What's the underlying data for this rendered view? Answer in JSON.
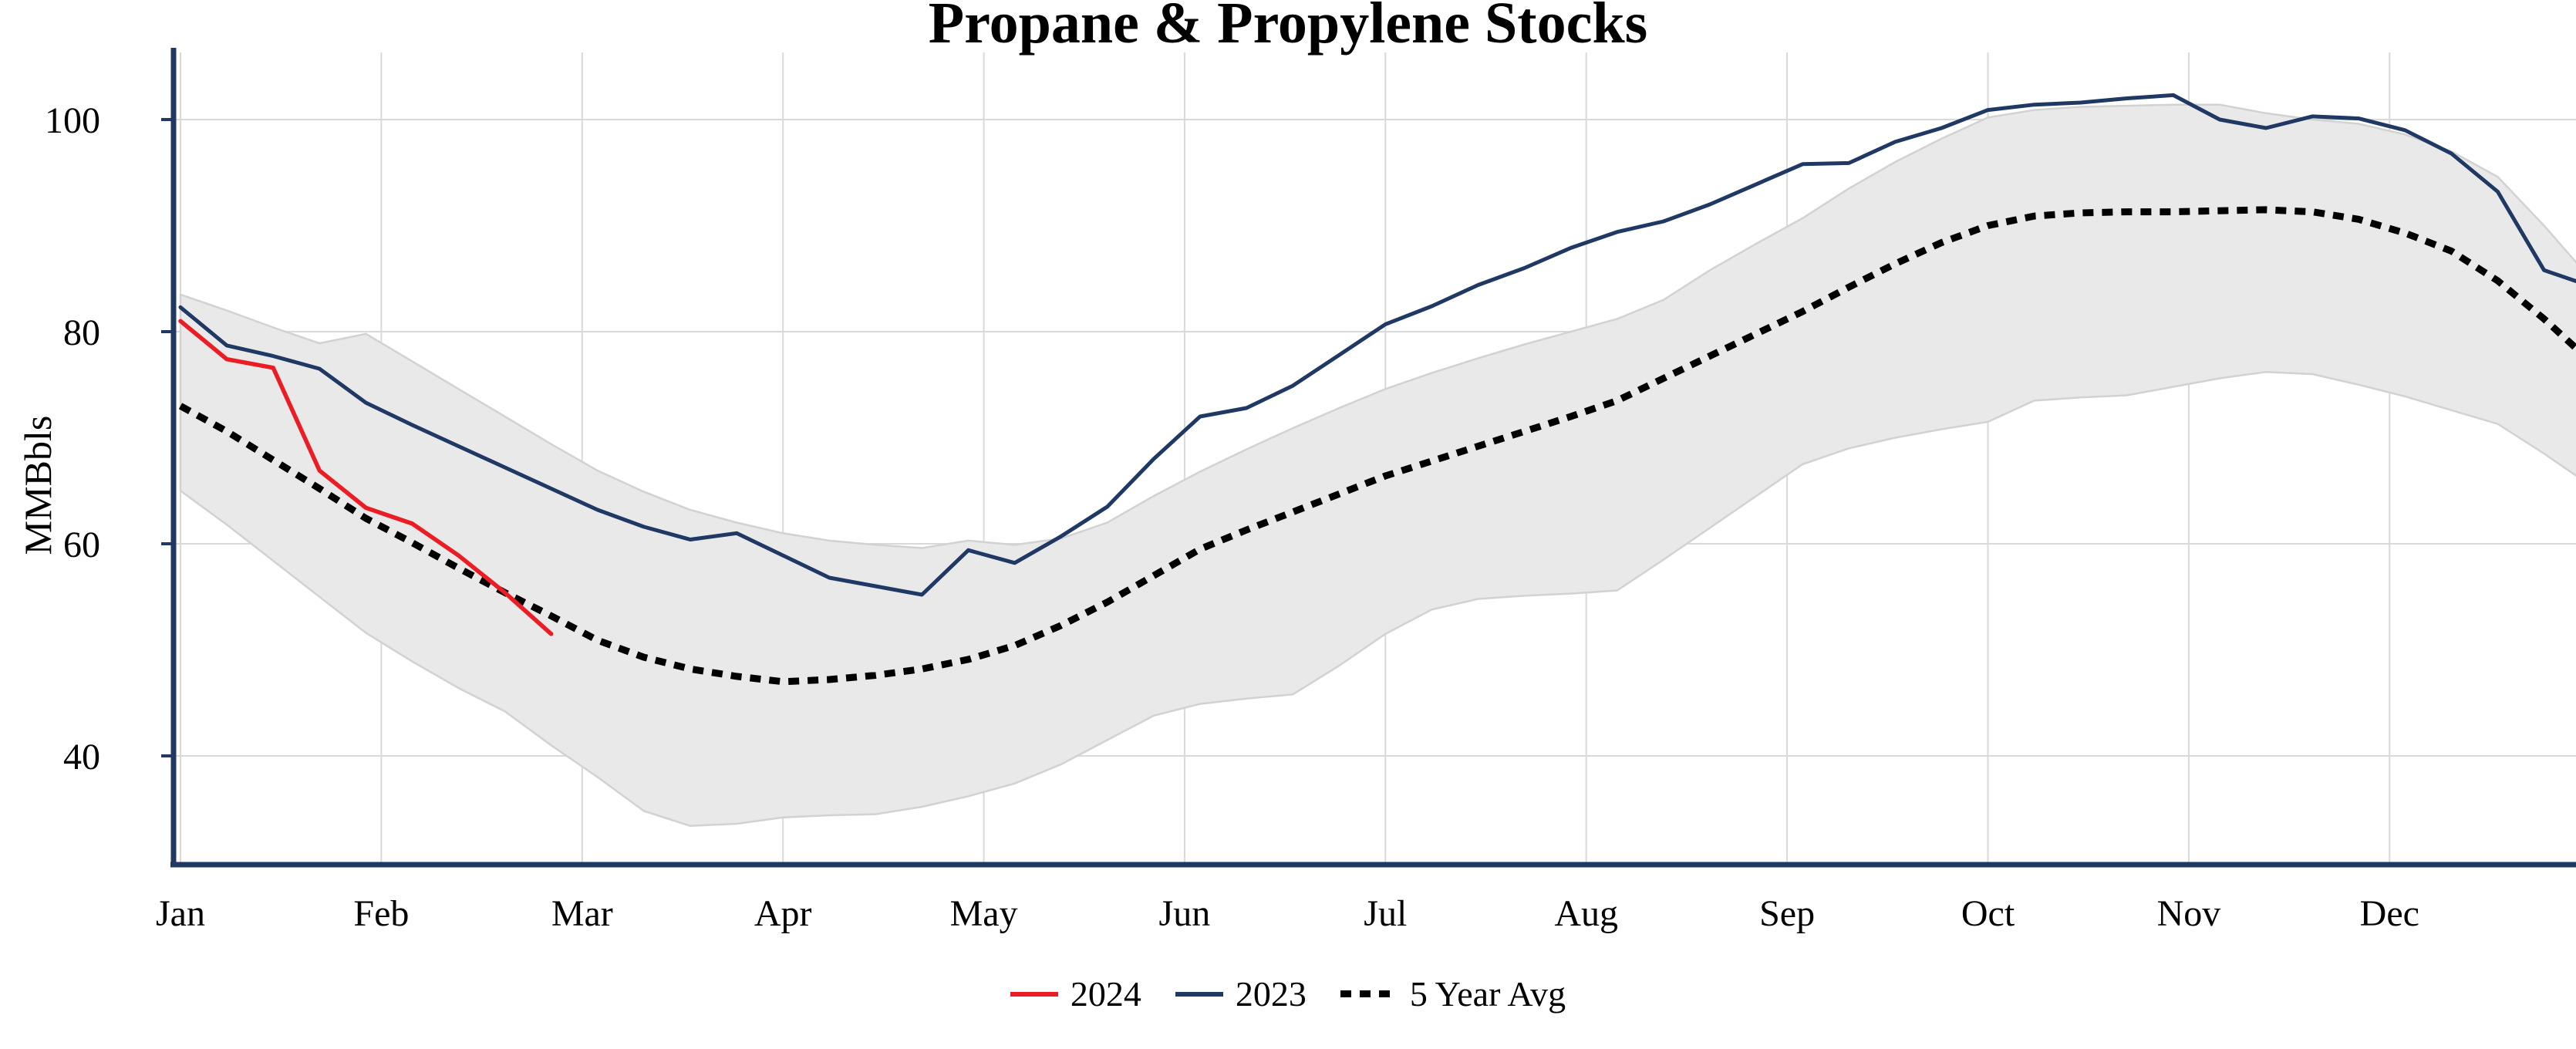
{
  "chart_data": {
    "type": "line",
    "title": "Propane & Propylene Stocks",
    "ylabel": "MMBbls",
    "x_unit": "weekly",
    "months": [
      "Jan",
      "Feb",
      "Mar",
      "Apr",
      "May",
      "Jun",
      "Jul",
      "Aug",
      "Sep",
      "Oct",
      "Nov",
      "Dec"
    ],
    "y_ticks": [
      40,
      60,
      80,
      100
    ],
    "ylim": [
      30,
      105
    ],
    "grid": true,
    "legend_position": "bottom-center",
    "colors": {
      "grid": "#d9d9d9",
      "axis": "#1f3864",
      "band_fill": "#e9e9e9",
      "band_edge": "#d2d2d2",
      "text": "#000000"
    },
    "series": [
      {
        "name": "2024",
        "color": "#ec1c24",
        "style": "solid",
        "values": [
          81.0,
          77.4,
          76.6,
          66.9,
          63.4,
          61.9,
          58.9,
          55.4,
          51.5
        ]
      },
      {
        "name": "2023",
        "color": "#1f3864",
        "style": "solid",
        "values": [
          82.3,
          78.7,
          77.7,
          76.5,
          73.3,
          71.2,
          69.2,
          67.2,
          65.2,
          63.2,
          61.6,
          60.4,
          61.0,
          58.9,
          56.8,
          56.0,
          55.2,
          59.4,
          58.2,
          60.7,
          63.5,
          68.0,
          72.0,
          72.8,
          74.9,
          77.8,
          80.7,
          82.4,
          84.4,
          86.0,
          87.9,
          89.4,
          90.4,
          92.0,
          93.9,
          95.8,
          95.9,
          97.9,
          99.2,
          100.9,
          101.4,
          101.6,
          102.0,
          102.3,
          100.0,
          99.2,
          100.3,
          100.1,
          99.0,
          96.8,
          93.2,
          85.8,
          84.3
        ]
      },
      {
        "name": "5 Year Avg",
        "color": "#000000",
        "style": "dotted",
        "values": [
          73.0,
          70.6,
          67.9,
          65.2,
          62.4,
          60.1,
          57.7,
          55.4,
          53.2,
          50.9,
          49.3,
          48.2,
          47.5,
          47.0,
          47.2,
          47.6,
          48.2,
          49.1,
          50.4,
          52.3,
          54.5,
          57.0,
          59.5,
          61.3,
          63.0,
          64.7,
          66.4,
          67.8,
          69.2,
          70.6,
          72.0,
          73.5,
          75.6,
          77.7,
          79.8,
          81.9,
          84.2,
          86.4,
          88.4,
          90.0,
          90.9,
          91.2,
          91.3,
          91.3,
          91.4,
          91.5,
          91.3,
          90.6,
          89.3,
          87.6,
          84.8,
          81.2,
          77.2
        ]
      }
    ],
    "band": {
      "upper": [
        83.5,
        82.0,
        80.4,
        78.9,
        79.8,
        77.2,
        74.6,
        72.0,
        69.4,
        66.9,
        64.9,
        63.2,
        62.0,
        61.0,
        60.3,
        59.9,
        59.6,
        60.3,
        59.9,
        60.5,
        62.0,
        64.5,
        66.8,
        68.9,
        70.9,
        72.8,
        74.6,
        76.1,
        77.5,
        78.8,
        80.0,
        81.2,
        83.0,
        85.8,
        88.3,
        90.7,
        93.5,
        96.0,
        98.2,
        100.2,
        100.9,
        101.2,
        101.3,
        101.4,
        101.4,
        100.6,
        100.0,
        99.6,
        98.6,
        97.0,
        94.6,
        90.0,
        85.0
      ],
      "lower": [
        65.0,
        61.8,
        58.4,
        55.0,
        51.6,
        48.9,
        46.4,
        44.2,
        41.0,
        38.0,
        34.8,
        33.4,
        33.6,
        34.2,
        34.4,
        34.5,
        35.2,
        36.2,
        37.4,
        39.2,
        41.5,
        43.8,
        44.9,
        45.4,
        45.8,
        48.5,
        51.5,
        53.8,
        54.8,
        55.1,
        55.3,
        55.6,
        58.5,
        61.5,
        64.5,
        67.5,
        69.0,
        70.0,
        70.8,
        71.5,
        73.5,
        73.8,
        74.0,
        74.8,
        75.6,
        76.2,
        76.0,
        75.0,
        73.9,
        72.6,
        71.3,
        68.5,
        65.5
      ]
    },
    "legend": [
      "2024",
      "2023",
      "5 Year Avg"
    ]
  }
}
